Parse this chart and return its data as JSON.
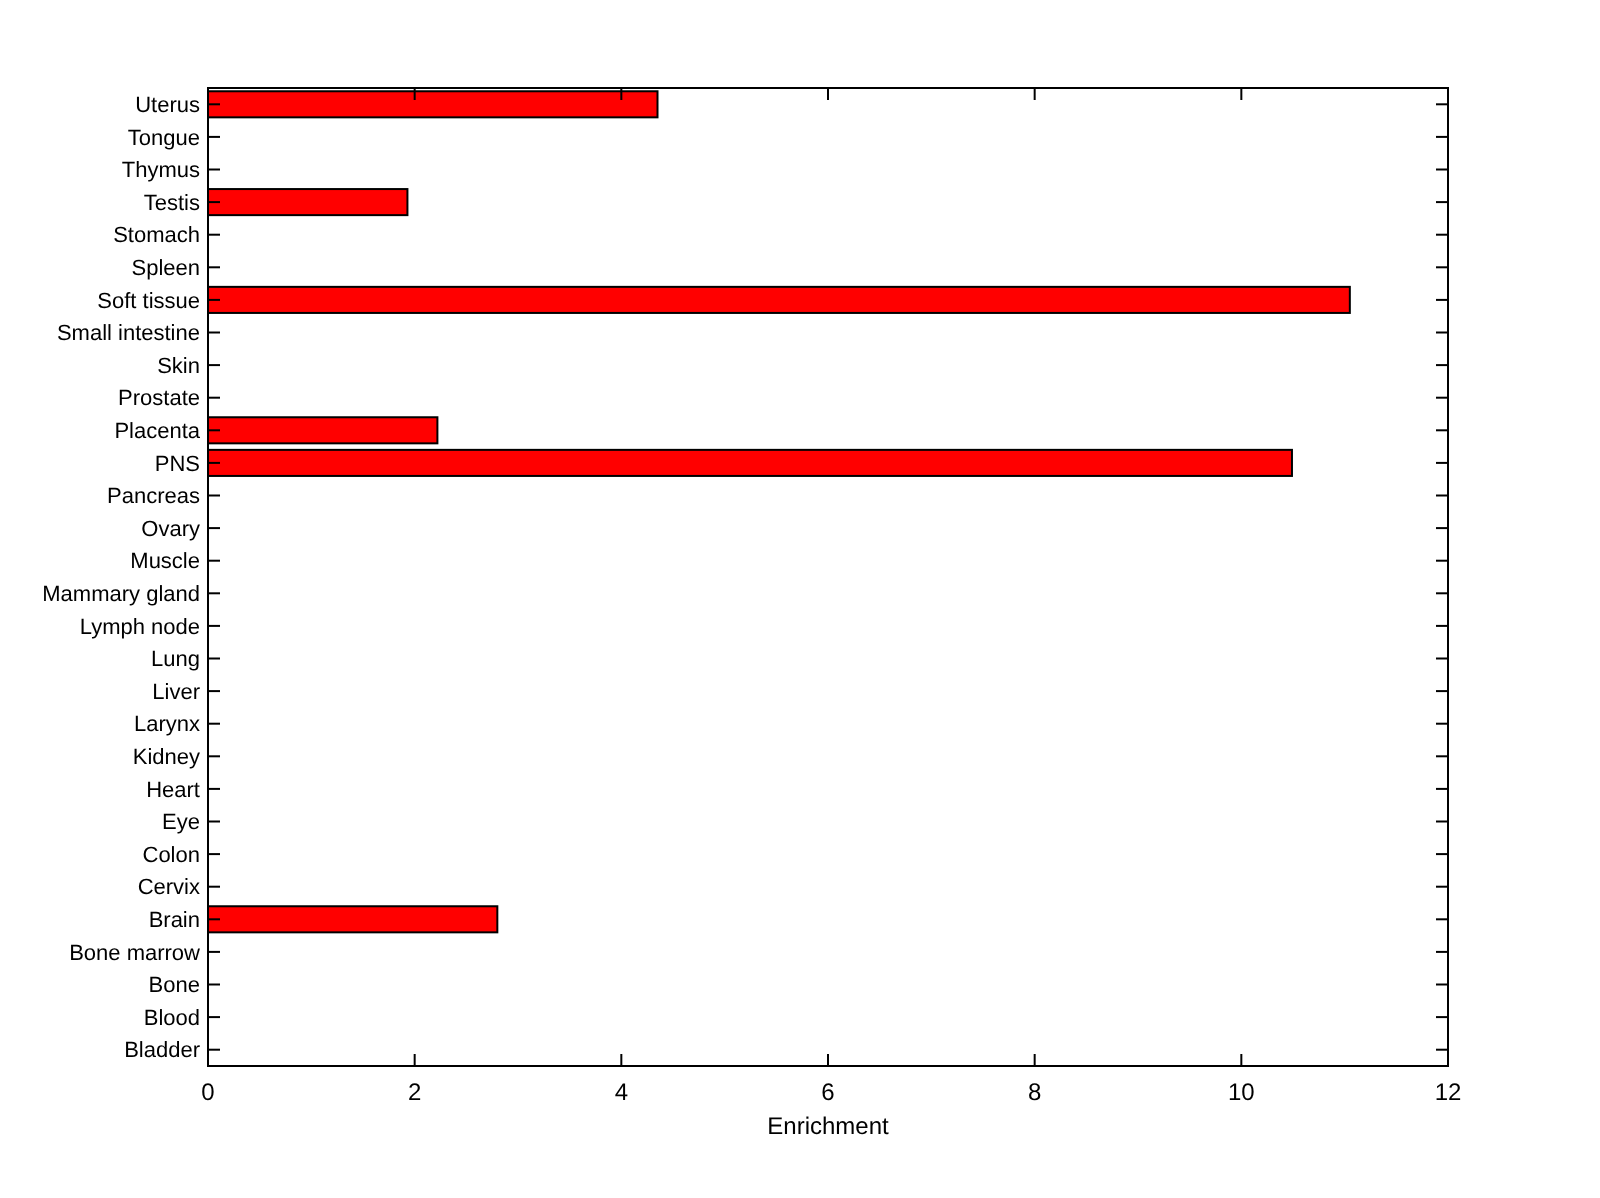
{
  "chart_data": {
    "type": "bar",
    "orientation": "horizontal",
    "xlabel": "Enrichment",
    "categories": [
      "Uterus",
      "Tongue",
      "Thymus",
      "Testis",
      "Stomach",
      "Spleen",
      "Soft tissue",
      "Small intestine",
      "Skin",
      "Prostate",
      "Placenta",
      "PNS",
      "Pancreas",
      "Ovary",
      "Muscle",
      "Mammary gland",
      "Lymph node",
      "Lung",
      "Liver",
      "Larynx",
      "Kidney",
      "Heart",
      "Eye",
      "Colon",
      "Cervix",
      "Brain",
      "Bone marrow",
      "Bone",
      "Blood",
      "Bladder"
    ],
    "values": [
      4.35,
      0,
      0,
      1.93,
      0,
      0,
      11.05,
      0,
      0,
      0,
      2.22,
      10.49,
      0,
      0,
      0,
      0,
      0,
      0,
      0,
      0,
      0,
      0,
      0,
      0,
      0,
      2.8,
      0,
      0,
      0,
      0
    ],
    "color": "#ff0000",
    "xlim": [
      0,
      12
    ],
    "xticks": [
      0,
      2,
      4,
      6,
      8,
      10,
      12
    ],
    "grid": false
  }
}
